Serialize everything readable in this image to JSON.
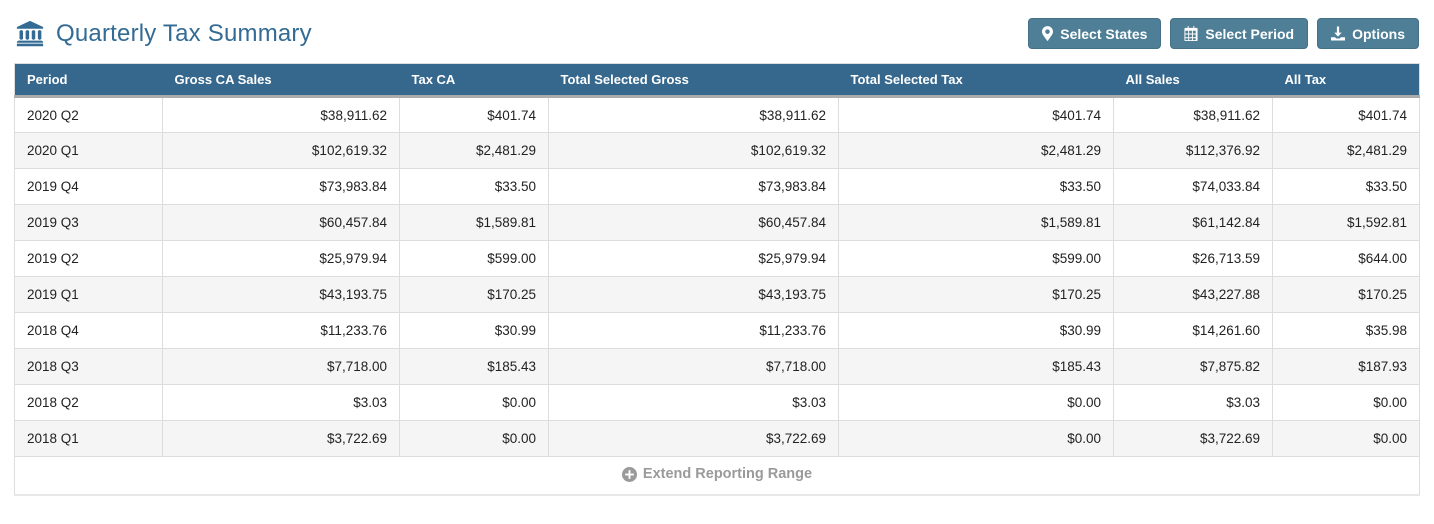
{
  "header": {
    "app_icon": "bank-icon",
    "title": "Quarterly Tax Summary",
    "buttons": [
      {
        "label": "Select States",
        "icon": "map-marker-icon",
        "name": "select-states-button"
      },
      {
        "label": "Select Period",
        "icon": "calendar-icon",
        "name": "select-period-button"
      },
      {
        "label": "Options",
        "icon": "download-icon",
        "name": "options-button"
      }
    ]
  },
  "table": {
    "columns": [
      "Period",
      "Gross CA Sales",
      "Tax CA",
      "Total Selected Gross",
      "Total Selected Tax",
      "All Sales",
      "All Tax"
    ],
    "rows": [
      [
        "2020 Q2",
        "$38,911.62",
        "$401.74",
        "$38,911.62",
        "$401.74",
        "$38,911.62",
        "$401.74"
      ],
      [
        "2020 Q1",
        "$102,619.32",
        "$2,481.29",
        "$102,619.32",
        "$2,481.29",
        "$112,376.92",
        "$2,481.29"
      ],
      [
        "2019 Q4",
        "$73,983.84",
        "$33.50",
        "$73,983.84",
        "$33.50",
        "$74,033.84",
        "$33.50"
      ],
      [
        "2019 Q3",
        "$60,457.84",
        "$1,589.81",
        "$60,457.84",
        "$1,589.81",
        "$61,142.84",
        "$1,592.81"
      ],
      [
        "2019 Q2",
        "$25,979.94",
        "$599.00",
        "$25,979.94",
        "$599.00",
        "$26,713.59",
        "$644.00"
      ],
      [
        "2019 Q1",
        "$43,193.75",
        "$170.25",
        "$43,193.75",
        "$170.25",
        "$43,227.88",
        "$170.25"
      ],
      [
        "2018 Q4",
        "$11,233.76",
        "$30.99",
        "$11,233.76",
        "$30.99",
        "$14,261.60",
        "$35.98"
      ],
      [
        "2018 Q3",
        "$7,718.00",
        "$185.43",
        "$7,718.00",
        "$185.43",
        "$7,875.82",
        "$187.93"
      ],
      [
        "2018 Q2",
        "$3.03",
        "$0.00",
        "$3.03",
        "$0.00",
        "$3.03",
        "$0.00"
      ],
      [
        "2018 Q1",
        "$3,722.69",
        "$0.00",
        "$3,722.69",
        "$0.00",
        "$3,722.69",
        "$0.00"
      ]
    ],
    "footer": {
      "label": "Extend Reporting Range",
      "icon": "plus-circle-icon"
    }
  },
  "colors": {
    "accent_blue": "#336b94",
    "table_header_bg": "#36688e",
    "button_bg": "#4e7f96",
    "alt_row_bg": "#f5f5f5",
    "border": "#dddddd",
    "footer_text": "#9a9a9a"
  }
}
